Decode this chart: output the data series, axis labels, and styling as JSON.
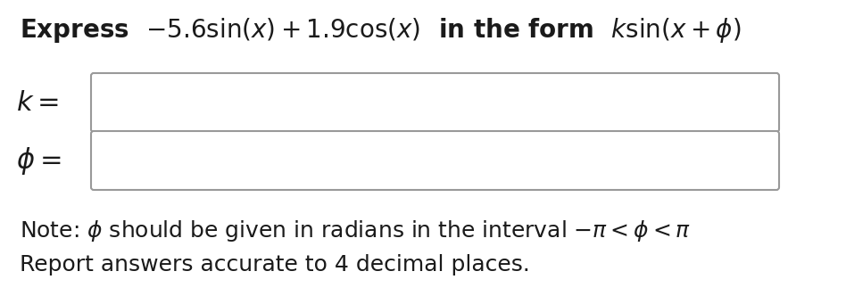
{
  "line1": "Express  $-5.6\\,\\mathbf{sin}(x) + 1.9\\,\\mathbf{cos}(x)$  in the form  $\\boldsymbol{k}\\mathbf{sin}(x + \\boldsymbol{\\phi})$",
  "label_k": "$\\boldsymbol{k} = $",
  "label_phi": "$\\boldsymbol{\\phi} = $",
  "note1_pre": "Note: ",
  "note1_phi": "$\\phi$",
  "note1_post": " should be given in radians in the interval $-\\pi < \\phi < \\pi$",
  "note2": "Report answers accurate to 4 decimal places.",
  "title_plain": "Express",
  "title_math": "$-5.6\\sin(x) + 1.9\\cos(x)$  in the form  $k\\sin(x + \\phi)$",
  "note_line1": "Note: $\\phi$ should be given in radians in the interval $-\\pi < \\phi < \\pi$",
  "note_line2": "Report answers accurate to 4 decimal places.",
  "bg_color": "#ffffff",
  "text_color": "#1a1a1a",
  "box_edge_color": "#999999",
  "box_fill_color": "#ffffff",
  "title_fontsize": 20,
  "label_fontsize": 22,
  "note_fontsize": 18,
  "fig_width": 9.48,
  "fig_height": 3.32,
  "dpi": 100
}
